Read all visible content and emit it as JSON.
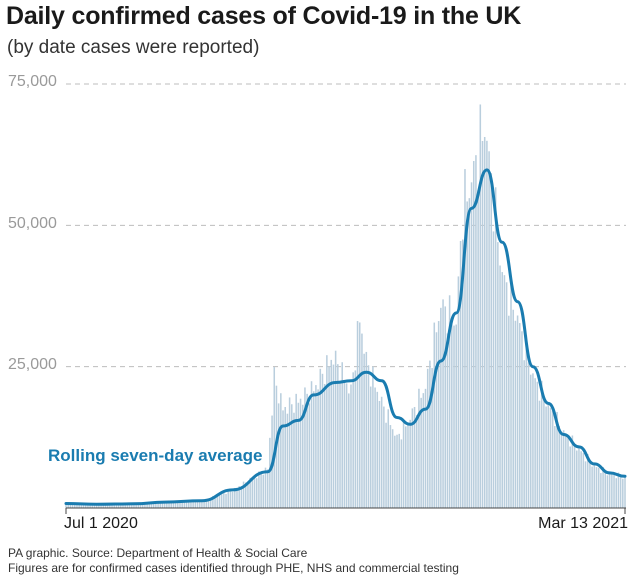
{
  "header": {
    "title": "Daily confirmed cases of Covid-19 in the UK",
    "subtitle": "(by date cases were reported)"
  },
  "footer": {
    "source": "PA graphic. Source: Department of Health & Social Care",
    "note": "Figures are for confirmed cases identified through PHE, NHS and commercial testing"
  },
  "colors": {
    "bars": "#b9cedd",
    "line": "#1a7cb0",
    "grid": "#bdbdbd",
    "tick_text": "#9a9a9a"
  },
  "chart_data": {
    "type": "bar",
    "title": "Daily confirmed cases of Covid-19 in the UK",
    "subtitle": "(by date cases were reported)",
    "xlabel": "",
    "ylabel": "",
    "ylim": [
      0,
      75000
    ],
    "yticks": [
      25000,
      50000,
      75000
    ],
    "ytick_labels": [
      "25,000",
      "50,000",
      "75,000"
    ],
    "x_range": [
      "2020-07-01",
      "2021-03-13"
    ],
    "x_tick_labels": [
      "Jul 1 2020",
      "Mar 13 2021"
    ],
    "grid": "horizontal dashed",
    "series": [
      {
        "name": "Rolling seven-day average",
        "type": "line",
        "points": [
          [
            "2020-07-01",
            800
          ],
          [
            "2020-07-15",
            650
          ],
          [
            "2020-08-01",
            750
          ],
          [
            "2020-08-15",
            1050
          ],
          [
            "2020-09-01",
            1300
          ],
          [
            "2020-09-15",
            3200
          ],
          [
            "2020-10-01",
            6400
          ],
          [
            "2020-10-08",
            14500
          ],
          [
            "2020-10-15",
            15500
          ],
          [
            "2020-10-22",
            20000
          ],
          [
            "2020-11-01",
            22200
          ],
          [
            "2020-11-08",
            22500
          ],
          [
            "2020-11-15",
            24000
          ],
          [
            "2020-11-22",
            22500
          ],
          [
            "2020-11-29",
            16000
          ],
          [
            "2020-12-05",
            14800
          ],
          [
            "2020-12-12",
            17500
          ],
          [
            "2020-12-19",
            26000
          ],
          [
            "2020-12-26",
            34500
          ],
          [
            "2021-01-02",
            53000
          ],
          [
            "2021-01-09",
            59800
          ],
          [
            "2021-01-16",
            47000
          ],
          [
            "2021-01-23",
            36500
          ],
          [
            "2021-01-30",
            25000
          ],
          [
            "2021-02-06",
            18500
          ],
          [
            "2021-02-13",
            13000
          ],
          [
            "2021-02-20",
            10800
          ],
          [
            "2021-02-27",
            7800
          ],
          [
            "2021-03-06",
            6200
          ],
          [
            "2021-03-13",
            5600
          ]
        ]
      },
      {
        "name": "Daily confirmed cases",
        "type": "bar",
        "points": [
          [
            "2020-07-01",
            850
          ],
          [
            "2020-07-15",
            600
          ],
          [
            "2020-08-01",
            780
          ],
          [
            "2020-08-15",
            1100
          ],
          [
            "2020-09-01",
            1300
          ],
          [
            "2020-09-15",
            3100
          ],
          [
            "2020-10-01",
            6900
          ],
          [
            "2020-10-04",
            23000
          ],
          [
            "2020-10-08",
            17500
          ],
          [
            "2020-10-15",
            18900
          ],
          [
            "2020-10-22",
            21000
          ],
          [
            "2020-10-31",
            26800
          ],
          [
            "2020-11-08",
            20500
          ],
          [
            "2020-11-12",
            33500
          ],
          [
            "2020-11-15",
            26000
          ],
          [
            "2020-11-22",
            18600
          ],
          [
            "2020-11-29",
            12300
          ],
          [
            "2020-12-05",
            16000
          ],
          [
            "2020-12-12",
            21500
          ],
          [
            "2020-12-19",
            35900
          ],
          [
            "2020-12-26",
            32700
          ],
          [
            "2020-12-29",
            53100
          ],
          [
            "2021-01-02",
            57700
          ],
          [
            "2021-01-08",
            68000
          ],
          [
            "2021-01-16",
            41300
          ],
          [
            "2021-01-23",
            33500
          ],
          [
            "2021-01-30",
            23300
          ],
          [
            "2021-02-06",
            18200
          ],
          [
            "2021-02-13",
            13300
          ],
          [
            "2021-02-20",
            10400
          ],
          [
            "2021-02-27",
            7400
          ],
          [
            "2021-03-06",
            6000
          ],
          [
            "2021-03-13",
            5500
          ]
        ]
      }
    ],
    "annotations": [
      "Rolling seven-day average"
    ]
  }
}
